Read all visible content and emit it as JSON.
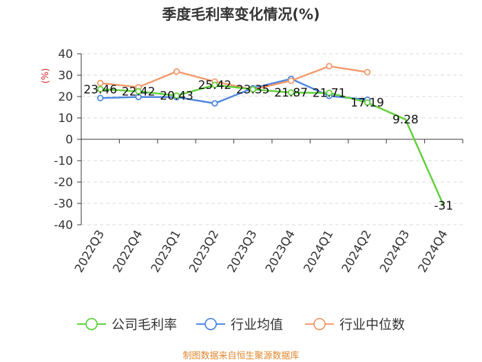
{
  "chart_data": {
    "type": "line",
    "title": "季度毛利率变化情况(%)",
    "ylabel": "(%)",
    "categories": [
      "2022Q3",
      "2022Q4",
      "2023Q1",
      "2023Q2",
      "2023Q3",
      "2023Q4",
      "2024Q1",
      "2024Q2",
      "2024Q3",
      "2024Q4"
    ],
    "ylim": [
      -40,
      40
    ],
    "yticks": [
      40,
      30,
      20,
      10,
      0,
      -10,
      -20,
      -30,
      -40
    ],
    "grid": true,
    "legend_position": "bottom",
    "series": [
      {
        "name": "公司毛利率",
        "color": "#5fcf3a",
        "values": [
          23.46,
          22.42,
          20.43,
          25.42,
          23.35,
          21.87,
          21.71,
          17.19,
          9.28,
          -31
        ],
        "labels": [
          "23.46",
          "22.42",
          "20.43",
          "25.42",
          "23.35",
          "21.87",
          "21.71",
          "17.19",
          "9.28",
          "-31"
        ]
      },
      {
        "name": "行业均值",
        "color": "#4f86e0",
        "values": [
          19.3,
          19.8,
          19.7,
          16.8,
          23.9,
          28.3,
          20.3,
          18.5,
          null,
          null
        ]
      },
      {
        "name": "行业中位数",
        "color": "#f5996b",
        "values": [
          26.3,
          24.4,
          31.7,
          27.0,
          23.3,
          27.4,
          34.2,
          31.4,
          null,
          null
        ]
      }
    ]
  },
  "footer": {
    "source": "制图数据来自恒生聚源数据库",
    "source_color": "#e0872f"
  }
}
